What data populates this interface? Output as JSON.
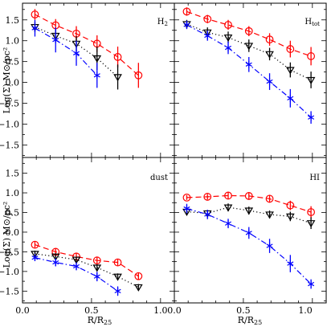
{
  "chart_data": [
    {
      "type": "line",
      "panel_title": "H2",
      "xlim": [
        0.0,
        1.1
      ],
      "ylim": [
        -1.8,
        1.9
      ],
      "series": [
        {
          "color": "#ff0000",
          "marker": "circle",
          "line": "dash",
          "x": [
            0.09,
            0.24,
            0.39,
            0.54,
            0.69,
            0.84
          ],
          "y": [
            1.63,
            1.37,
            1.17,
            0.93,
            0.61,
            0.17
          ],
          "err": [
            0.13,
            0.15,
            0.18,
            0.2,
            0.25,
            0.3
          ]
        },
        {
          "color": "#000000",
          "marker": "triangle-down",
          "line": "dot",
          "x": [
            0.09,
            0.24,
            0.39,
            0.54,
            0.69
          ],
          "y": [
            1.33,
            1.12,
            0.93,
            0.58,
            0.13
          ],
          "err": [
            0.12,
            0.15,
            0.18,
            0.28,
            0.3
          ]
        },
        {
          "color": "#0000ff",
          "marker": "star",
          "line": "dashdot",
          "x": [
            0.09,
            0.24,
            0.39,
            0.54
          ],
          "y": [
            1.3,
            1.02,
            0.7,
            0.17
          ],
          "err": [
            0.2,
            0.3,
            0.3,
            0.3
          ]
        }
      ]
    },
    {
      "type": "line",
      "panel_title": "Htot",
      "xlim": [
        0.0,
        1.1
      ],
      "ylim": [
        -1.8,
        1.9
      ],
      "series": [
        {
          "color": "#ff0000",
          "marker": "circle",
          "line": "dash",
          "x": [
            0.09,
            0.24,
            0.39,
            0.54,
            0.69,
            0.84,
            0.99
          ],
          "y": [
            1.7,
            1.52,
            1.38,
            1.23,
            1.03,
            0.8,
            0.63
          ],
          "err": [
            0.1,
            0.1,
            0.12,
            0.12,
            0.15,
            0.2,
            0.22
          ]
        },
        {
          "color": "#000000",
          "marker": "triangle-down",
          "line": "dot",
          "x": [
            0.09,
            0.24,
            0.39,
            0.54,
            0.69,
            0.84,
            0.99
          ],
          "y": [
            1.4,
            1.2,
            1.08,
            0.88,
            0.68,
            0.3,
            0.06
          ],
          "err": [
            0.1,
            0.12,
            0.14,
            0.15,
            0.15,
            0.18,
            0.2
          ]
        },
        {
          "color": "#0000ff",
          "marker": "star",
          "line": "dashdot",
          "x": [
            0.09,
            0.24,
            0.39,
            0.54,
            0.69,
            0.84,
            0.99
          ],
          "y": [
            1.38,
            1.12,
            0.83,
            0.43,
            0.02,
            -0.38,
            -0.84
          ],
          "err": [
            0.1,
            0.12,
            0.15,
            0.18,
            0.2,
            0.22,
            0.15
          ]
        }
      ]
    },
    {
      "type": "line",
      "panel_title": "dust",
      "xlim": [
        0.0,
        1.1
      ],
      "ylim": [
        -1.8,
        1.9
      ],
      "series": [
        {
          "color": "#ff0000",
          "marker": "circle",
          "line": "dash",
          "x": [
            0.09,
            0.24,
            0.39,
            0.54,
            0.69,
            0.84
          ],
          "y": [
            -0.32,
            -0.5,
            -0.62,
            -0.72,
            -0.77,
            -1.12
          ],
          "err": [
            0.08,
            0.08,
            0.08,
            0.08,
            0.08,
            0.08
          ]
        },
        {
          "color": "#000000",
          "marker": "triangle-down",
          "line": "dot",
          "x": [
            0.09,
            0.24,
            0.39,
            0.54,
            0.69,
            0.84
          ],
          "y": [
            -0.55,
            -0.62,
            -0.7,
            -0.9,
            -1.13,
            -1.4
          ],
          "err": [
            0.08,
            0.08,
            0.08,
            0.08,
            0.08,
            0.08
          ]
        },
        {
          "color": "#0000ff",
          "marker": "star",
          "line": "dashdot",
          "x": [
            0.09,
            0.24,
            0.39,
            0.54,
            0.69
          ],
          "y": [
            -0.65,
            -0.77,
            -0.87,
            -1.13,
            -1.5
          ],
          "err": [
            0.08,
            0.1,
            0.1,
            0.12,
            0.12
          ]
        }
      ]
    },
    {
      "type": "line",
      "panel_title": "HI",
      "xlim": [
        0.0,
        1.1
      ],
      "ylim": [
        -1.8,
        1.9
      ],
      "series": [
        {
          "color": "#ff0000",
          "marker": "circle",
          "line": "dash",
          "x": [
            0.09,
            0.24,
            0.39,
            0.54,
            0.69,
            0.84,
            0.99
          ],
          "y": [
            0.88,
            0.9,
            0.93,
            0.92,
            0.85,
            0.68,
            0.51
          ],
          "err": [
            0.06,
            0.07,
            0.08,
            0.08,
            0.1,
            0.12,
            0.15
          ]
        },
        {
          "color": "#000000",
          "marker": "triangle-down",
          "line": "dot",
          "x": [
            0.09,
            0.24,
            0.39,
            0.54,
            0.69,
            0.84,
            0.99
          ],
          "y": [
            0.52,
            0.48,
            0.63,
            0.55,
            0.45,
            0.4,
            0.23
          ],
          "err": [
            0.08,
            0.08,
            0.1,
            0.1,
            0.1,
            0.12,
            0.15
          ]
        },
        {
          "color": "#0000ff",
          "marker": "star",
          "line": "dashdot",
          "x": [
            0.09,
            0.24,
            0.39,
            0.54,
            0.69,
            0.84,
            0.99
          ],
          "y": [
            0.6,
            0.45,
            0.22,
            -0.02,
            -0.35,
            -0.8,
            -1.32
          ],
          "err": [
            0.12,
            0.12,
            0.12,
            0.15,
            0.18,
            0.22,
            0.12
          ]
        }
      ]
    }
  ],
  "axes": {
    "ylabel": "Log(Σ) M⊙/pc²",
    "xlabel": "R/R25",
    "xticks": [
      0.0,
      0.5,
      1.0
    ],
    "xtick_labels": [
      "0.0",
      "0.5",
      "1.0"
    ],
    "yticks": [
      1.5,
      1.0,
      0.5,
      0.0,
      -0.5,
      -1.0,
      -1.5
    ],
    "ytick_labels": [
      "1.5",
      "1.0",
      "0.5",
      "0.0",
      "−0.5",
      "−1.0",
      "−1.5"
    ]
  }
}
